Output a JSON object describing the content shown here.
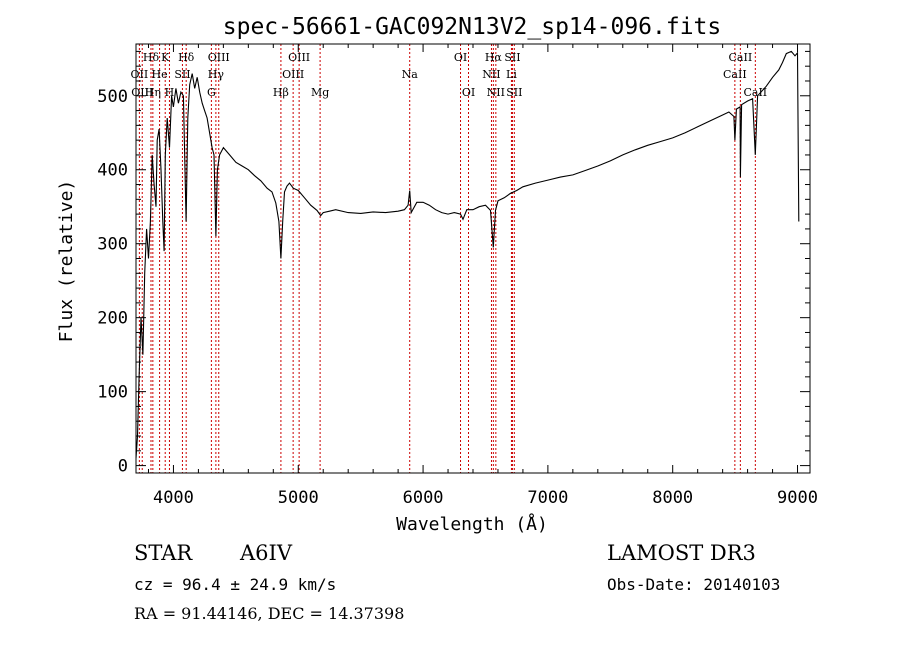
{
  "chart_data": {
    "type": "line",
    "title": "spec-56661-GAC092N13V2_sp14-096.fits",
    "xlabel": "Wavelength (Å)",
    "ylabel": "Flux (relative)",
    "xlim": [
      3700,
      9100
    ],
    "ylim": [
      -10,
      570
    ],
    "x_ticks": [
      4000,
      5000,
      6000,
      7000,
      8000,
      9000
    ],
    "y_ticks": [
      0,
      100,
      200,
      300,
      400,
      500
    ],
    "grid": false,
    "series": [
      {
        "name": "flux",
        "points": [
          [
            3700,
            10
          ],
          [
            3712,
            40
          ],
          [
            3725,
            120
          ],
          [
            3740,
            200
          ],
          [
            3755,
            150
          ],
          [
            3770,
            260
          ],
          [
            3785,
            320
          ],
          [
            3800,
            280
          ],
          [
            3815,
            330
          ],
          [
            3830,
            420
          ],
          [
            3845,
            380
          ],
          [
            3860,
            350
          ],
          [
            3870,
            440
          ],
          [
            3885,
            455
          ],
          [
            3900,
            400
          ],
          [
            3915,
            330
          ],
          [
            3925,
            290
          ],
          [
            3935,
            420
          ],
          [
            3950,
            470
          ],
          [
            3968,
            430
          ],
          [
            3985,
            500
          ],
          [
            4000,
            485
          ],
          [
            4020,
            510
          ],
          [
            4040,
            490
          ],
          [
            4060,
            505
          ],
          [
            4080,
            500
          ],
          [
            4101,
            330
          ],
          [
            4115,
            470
          ],
          [
            4130,
            515
          ],
          [
            4150,
            530
          ],
          [
            4170,
            510
          ],
          [
            4190,
            525
          ],
          [
            4210,
            505
          ],
          [
            4230,
            490
          ],
          [
            4250,
            480
          ],
          [
            4270,
            470
          ],
          [
            4290,
            450
          ],
          [
            4310,
            430
          ],
          [
            4325,
            420
          ],
          [
            4340,
            310
          ],
          [
            4352,
            400
          ],
          [
            4370,
            420
          ],
          [
            4400,
            430
          ],
          [
            4450,
            420
          ],
          [
            4500,
            410
          ],
          [
            4550,
            405
          ],
          [
            4600,
            400
          ],
          [
            4650,
            392
          ],
          [
            4700,
            385
          ],
          [
            4750,
            375
          ],
          [
            4790,
            370
          ],
          [
            4820,
            355
          ],
          [
            4845,
            330
          ],
          [
            4861,
            280
          ],
          [
            4875,
            330
          ],
          [
            4890,
            370
          ],
          [
            4910,
            378
          ],
          [
            4930,
            382
          ],
          [
            4960,
            375
          ],
          [
            5000,
            372
          ],
          [
            5050,
            362
          ],
          [
            5100,
            352
          ],
          [
            5150,
            345
          ],
          [
            5180,
            338
          ],
          [
            5200,
            342
          ],
          [
            5250,
            344
          ],
          [
            5300,
            346
          ],
          [
            5400,
            342
          ],
          [
            5500,
            341
          ],
          [
            5600,
            343
          ],
          [
            5700,
            342
          ],
          [
            5800,
            344
          ],
          [
            5850,
            346
          ],
          [
            5880,
            352
          ],
          [
            5893,
            372
          ],
          [
            5905,
            342
          ],
          [
            5950,
            356
          ],
          [
            6000,
            356
          ],
          [
            6050,
            352
          ],
          [
            6100,
            346
          ],
          [
            6150,
            342
          ],
          [
            6200,
            340
          ],
          [
            6250,
            342
          ],
          [
            6300,
            340
          ],
          [
            6320,
            333
          ],
          [
            6350,
            346
          ],
          [
            6400,
            346
          ],
          [
            6450,
            350
          ],
          [
            6500,
            352
          ],
          [
            6540,
            345
          ],
          [
            6563,
            295
          ],
          [
            6580,
            345
          ],
          [
            6600,
            358
          ],
          [
            6650,
            362
          ],
          [
            6700,
            368
          ],
          [
            6750,
            372
          ],
          [
            6800,
            377
          ],
          [
            6900,
            382
          ],
          [
            7000,
            386
          ],
          [
            7100,
            390
          ],
          [
            7200,
            393
          ],
          [
            7300,
            399
          ],
          [
            7400,
            405
          ],
          [
            7500,
            412
          ],
          [
            7600,
            420
          ],
          [
            7700,
            427
          ],
          [
            7800,
            433
          ],
          [
            7900,
            438
          ],
          [
            8000,
            443
          ],
          [
            8100,
            450
          ],
          [
            8200,
            458
          ],
          [
            8300,
            466
          ],
          [
            8400,
            474
          ],
          [
            8450,
            478
          ],
          [
            8490,
            472
          ],
          [
            8498,
            440
          ],
          [
            8510,
            482
          ],
          [
            8540,
            485
          ],
          [
            8542,
            390
          ],
          [
            8552,
            488
          ],
          [
            8600,
            493
          ],
          [
            8640,
            496
          ],
          [
            8662,
            420
          ],
          [
            8680,
            500
          ],
          [
            8750,
            513
          ],
          [
            8800,
            525
          ],
          [
            8850,
            535
          ],
          [
            8880,
            545
          ],
          [
            8910,
            557
          ],
          [
            8950,
            560
          ],
          [
            8980,
            554
          ],
          [
            9000,
            558
          ],
          [
            9010,
            330
          ]
        ]
      }
    ],
    "lines": [
      {
        "label": "Hδ",
        "wl": 3820,
        "row": 1
      },
      {
        "label": "OII",
        "wl": 3727,
        "row": 2
      },
      {
        "label": "OIII",
        "wl": 3750,
        "row": 3
      },
      {
        "label": "He",
        "wl": 3889,
        "row": 2
      },
      {
        "label": "Hη",
        "wl": 3835,
        "row": 3
      },
      {
        "label": "K",
        "wl": 3934,
        "row": 1
      },
      {
        "label": "H",
        "wl": 3968,
        "row": 3
      },
      {
        "label": "SII",
        "wl": 4072,
        "row": 2
      },
      {
        "label": "Hδ",
        "wl": 4102,
        "row": 1
      },
      {
        "label": "OIII",
        "wl": 4363,
        "row": 1
      },
      {
        "label": "Hγ",
        "wl": 4340,
        "row": 2
      },
      {
        "label": "G",
        "wl": 4304,
        "row": 3
      },
      {
        "label": "Hβ",
        "wl": 4861,
        "row": 3
      },
      {
        "label": "OIII",
        "wl": 4959,
        "row": 2
      },
      {
        "label": "OIII",
        "wl": 5007,
        "row": 1
      },
      {
        "label": "Mg",
        "wl": 5175,
        "row": 3
      },
      {
        "label": "Na",
        "wl": 5893,
        "row": 2
      },
      {
        "label": "OI",
        "wl": 6300,
        "row": 1
      },
      {
        "label": "OI",
        "wl": 6364,
        "row": 3
      },
      {
        "label": "NII",
        "wl": 6548,
        "row": 2
      },
      {
        "label": "Hα",
        "wl": 6563,
        "row": 1
      },
      {
        "label": "NII",
        "wl": 6583,
        "row": 3
      },
      {
        "label": "Li",
        "wl": 6708,
        "row": 2
      },
      {
        "label": "SII",
        "wl": 6716,
        "row": 1
      },
      {
        "label": "SII",
        "wl": 6731,
        "row": 3
      },
      {
        "label": "CaII",
        "wl": 8498,
        "row": 2
      },
      {
        "label": "CaII",
        "wl": 8542,
        "row": 1
      },
      {
        "label": "CaII",
        "wl": 8662,
        "row": 3
      }
    ],
    "colors": {
      "line_marker": "#cc0000",
      "spectrum": "#000000",
      "axes": "#000000"
    }
  },
  "info": {
    "object_class": "STAR",
    "subclass": "A6IV",
    "redshift": "cz = 96.4 ± 24.9 km/s",
    "coords": "RA =  91.44146, DEC =  14.37398",
    "survey": "LAMOST DR3",
    "obs_date": "Obs-Date: 20140103"
  }
}
